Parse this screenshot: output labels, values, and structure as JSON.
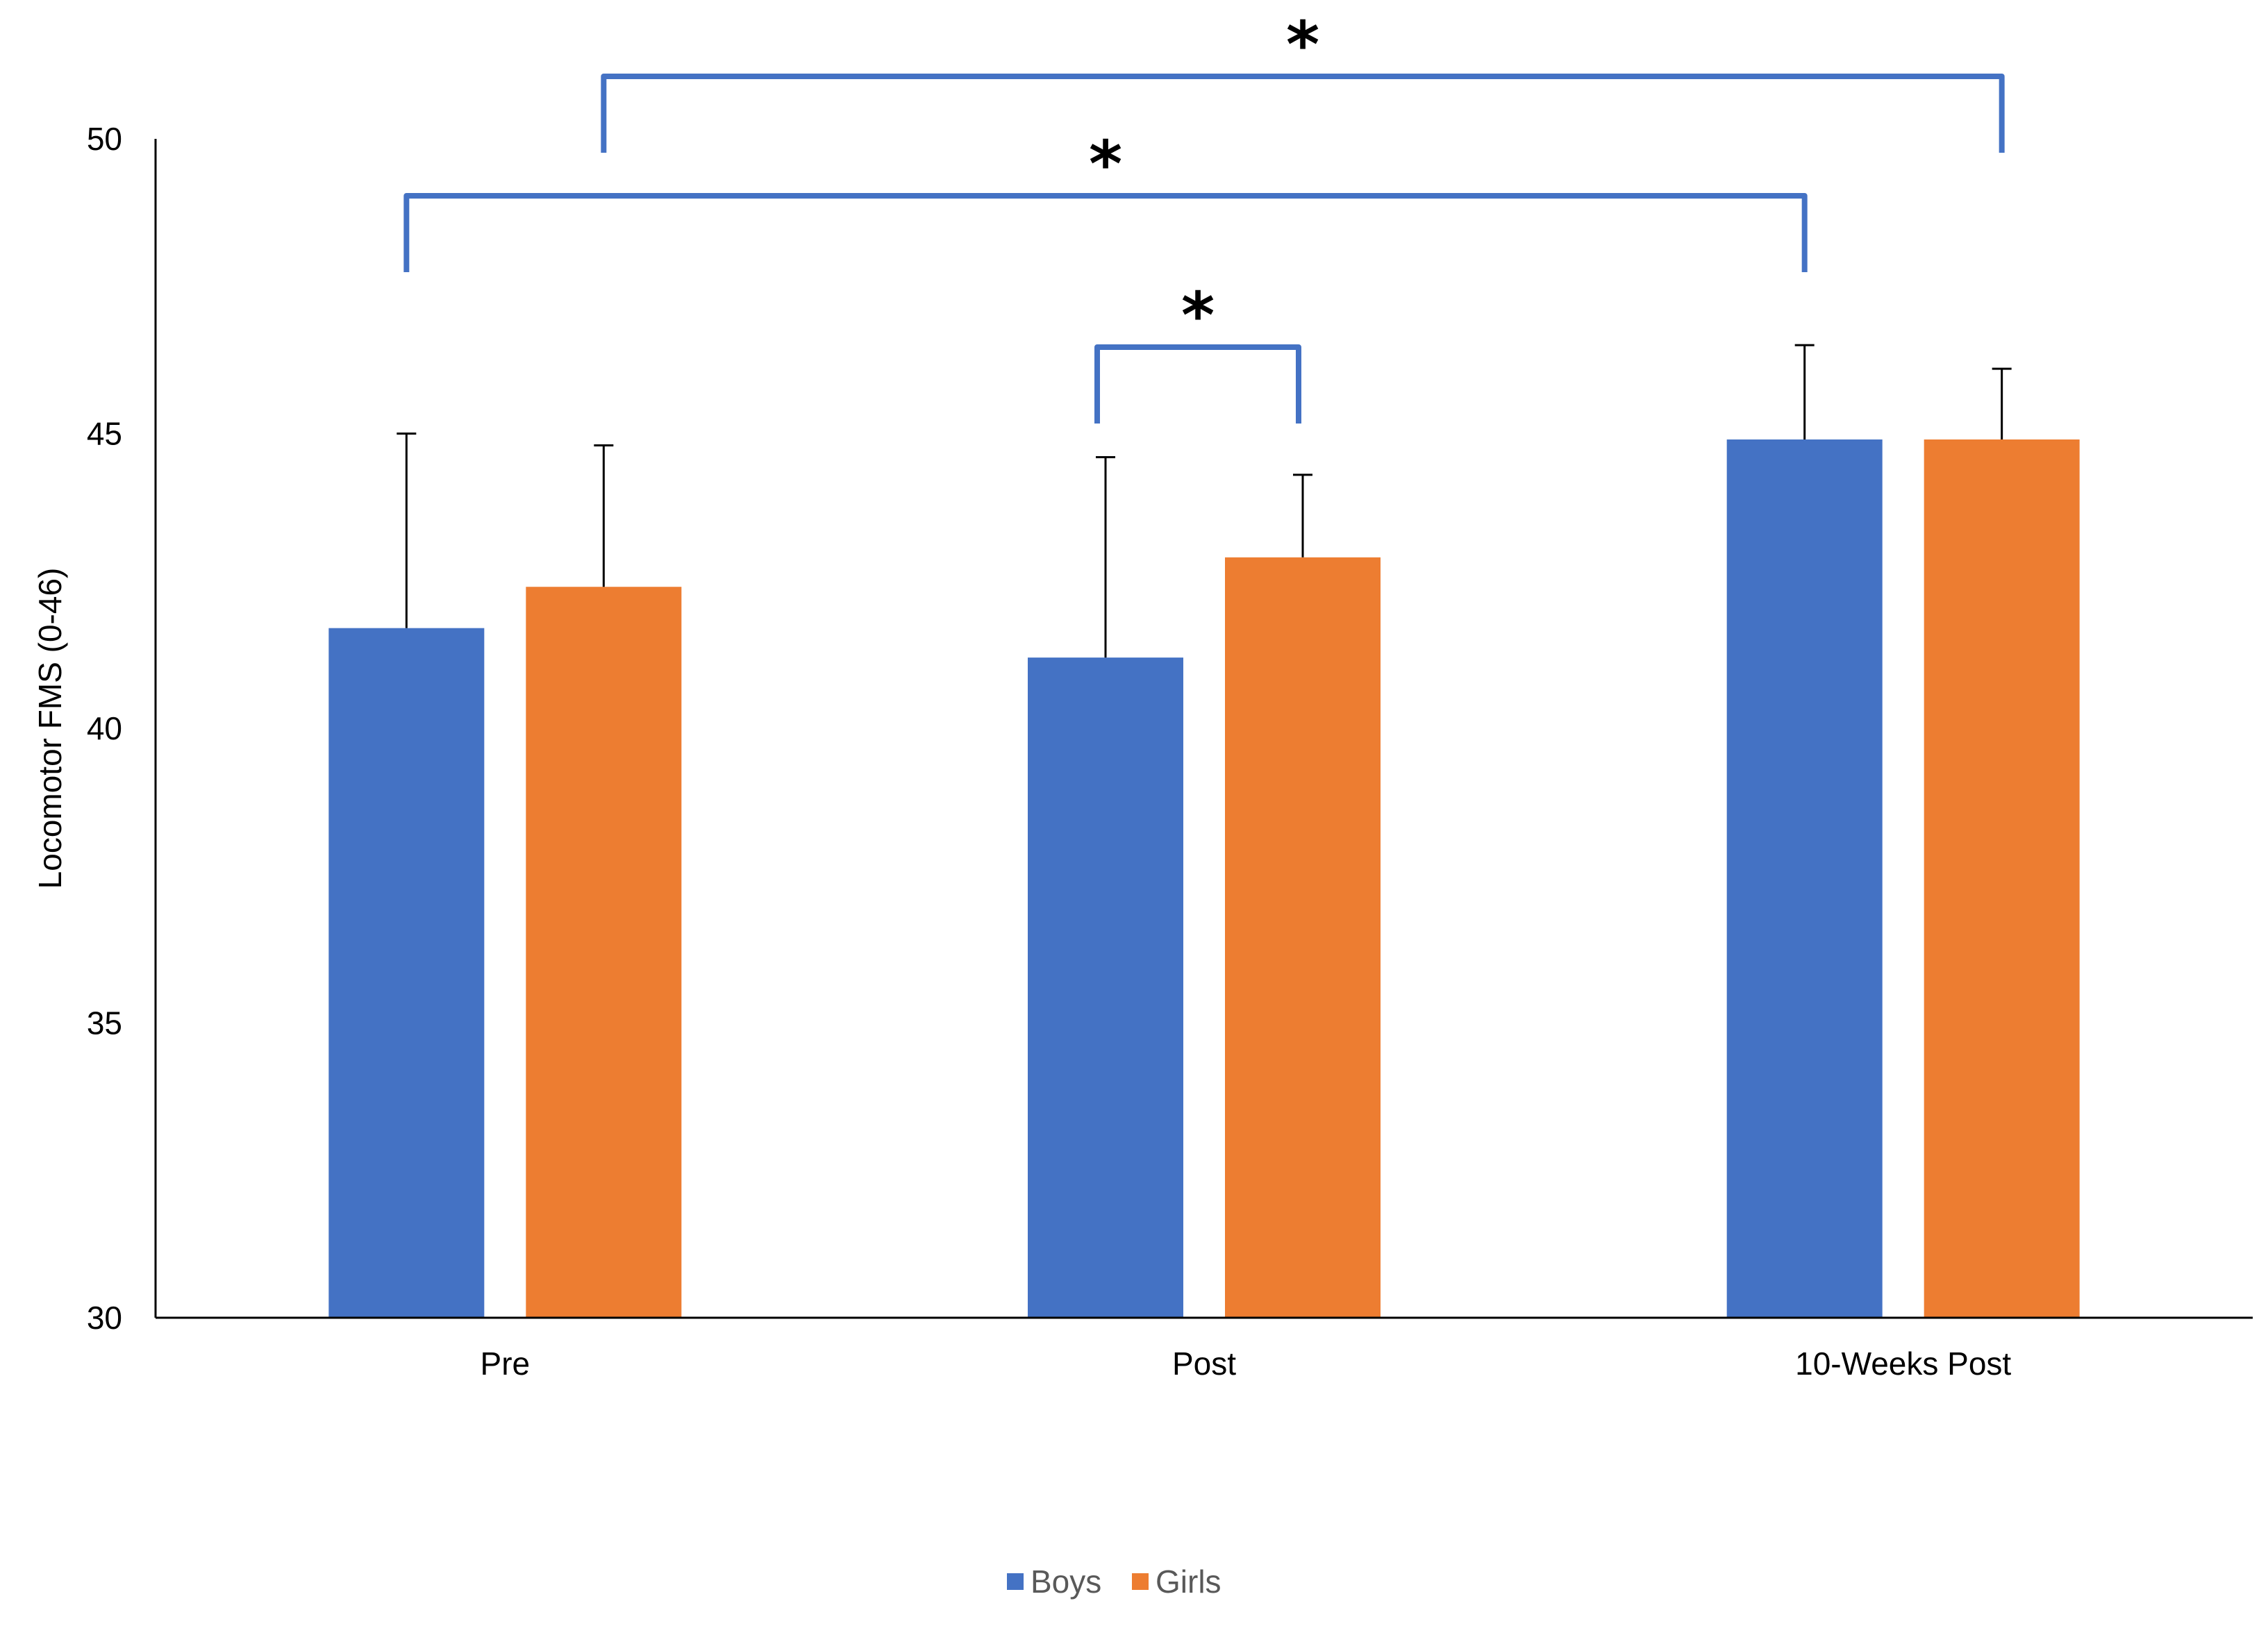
{
  "chart_data": {
    "type": "bar",
    "title": "",
    "xlabel": "",
    "ylabel": "Locomotor FMS (0-46)",
    "ylim": [
      30,
      50
    ],
    "yticks": [
      30,
      35,
      40,
      45,
      50
    ],
    "grid": false,
    "categories": [
      "Pre",
      "Post",
      "10-Weeks Post"
    ],
    "series": [
      {
        "name": "Boys",
        "color": "#4472C4",
        "values": [
          41.7,
          41.2,
          44.9
        ],
        "errors": [
          3.3,
          3.4,
          1.6
        ]
      },
      {
        "name": "Girls",
        "color": "#ED7D31",
        "values": [
          42.4,
          42.9,
          44.9
        ],
        "errors": [
          2.4,
          1.4,
          1.2
        ]
      }
    ],
    "significance": [
      {
        "from": {
          "category": 1,
          "series": 0
        },
        "to": {
          "category": 1,
          "series": 1
        },
        "label": "*"
      },
      {
        "from": {
          "category": 0,
          "series": 0
        },
        "to": {
          "category": 2,
          "series": 0
        },
        "label": "*"
      },
      {
        "from": {
          "category": 0,
          "series": 1
        },
        "to": {
          "category": 2,
          "series": 1
        },
        "label": "*"
      }
    ],
    "legend_position": "bottom",
    "bracket_color": "#4472C4",
    "axis_color": "#000000"
  }
}
